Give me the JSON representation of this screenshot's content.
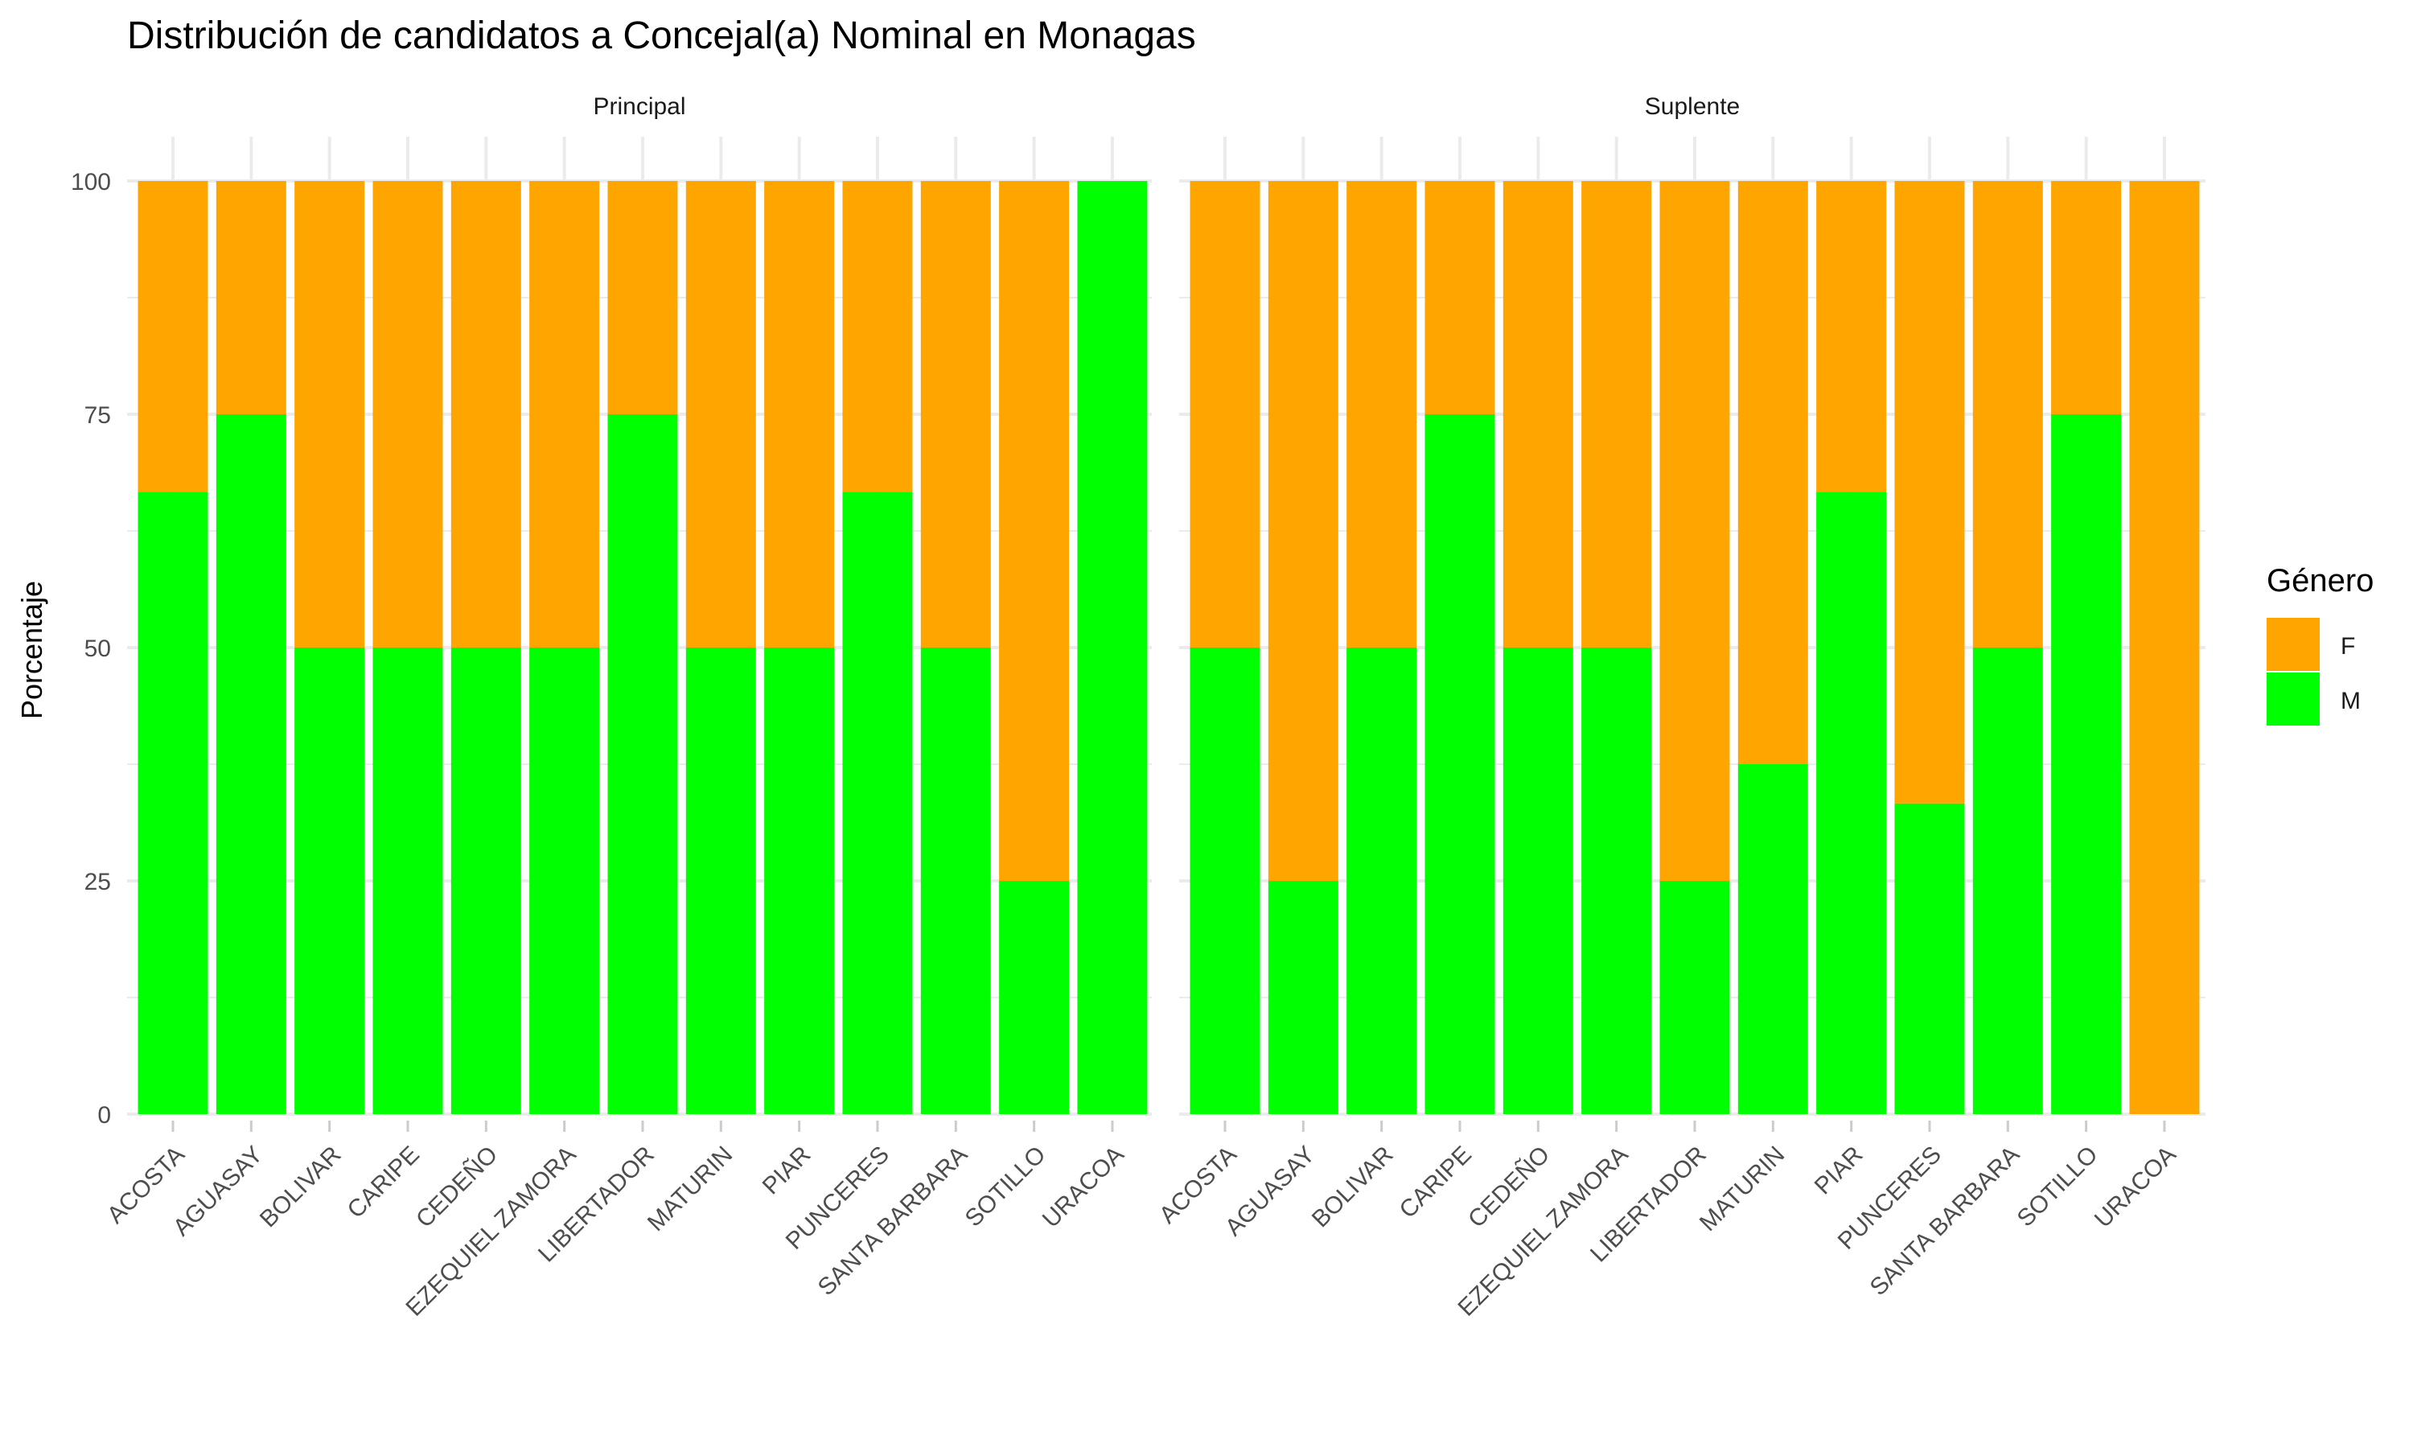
{
  "chart_data": {
    "type": "bar",
    "stacked": true,
    "title": "Distribución de candidatos a Concejal(a) Nominal en Monagas",
    "ylabel": "Porcentaje",
    "xlabel": "",
    "ylim": [
      0,
      100
    ],
    "yticks": [
      0,
      25,
      50,
      75,
      100
    ],
    "grid": true,
    "legend": {
      "title": "Género",
      "position": "right",
      "items": [
        {
          "label": "F",
          "color": "#FFA500"
        },
        {
          "label": "M",
          "color": "#00FF00"
        }
      ]
    },
    "categories": [
      "ACOSTA",
      "AGUASAY",
      "BOLIVAR",
      "CARIPE",
      "CEDEÑO",
      "EZEQUIEL ZAMORA",
      "LIBERTADOR",
      "MATURIN",
      "PIAR",
      "PUNCERES",
      "SANTA BARBARA",
      "SOTILLO",
      "URACOA"
    ],
    "panels": [
      {
        "name": "Principal",
        "series": [
          {
            "name": "M",
            "color": "#00FF00",
            "values": [
              66.7,
              75,
              50,
              50,
              50,
              50,
              75,
              50,
              50,
              66.7,
              50,
              25,
              100
            ]
          },
          {
            "name": "F",
            "color": "#FFA500",
            "values": [
              33.3,
              25,
              50,
              50,
              50,
              50,
              25,
              50,
              50,
              33.3,
              50,
              75,
              0
            ]
          }
        ]
      },
      {
        "name": "Suplente",
        "series": [
          {
            "name": "M",
            "color": "#00FF00",
            "values": [
              50,
              25,
              50,
              75,
              50,
              50,
              25,
              37.5,
              66.7,
              33.3,
              50,
              75,
              0
            ]
          },
          {
            "name": "F",
            "color": "#FFA500",
            "values": [
              50,
              75,
              50,
              25,
              50,
              50,
              75,
              62.5,
              33.3,
              66.7,
              50,
              25,
              100
            ]
          }
        ]
      }
    ]
  }
}
